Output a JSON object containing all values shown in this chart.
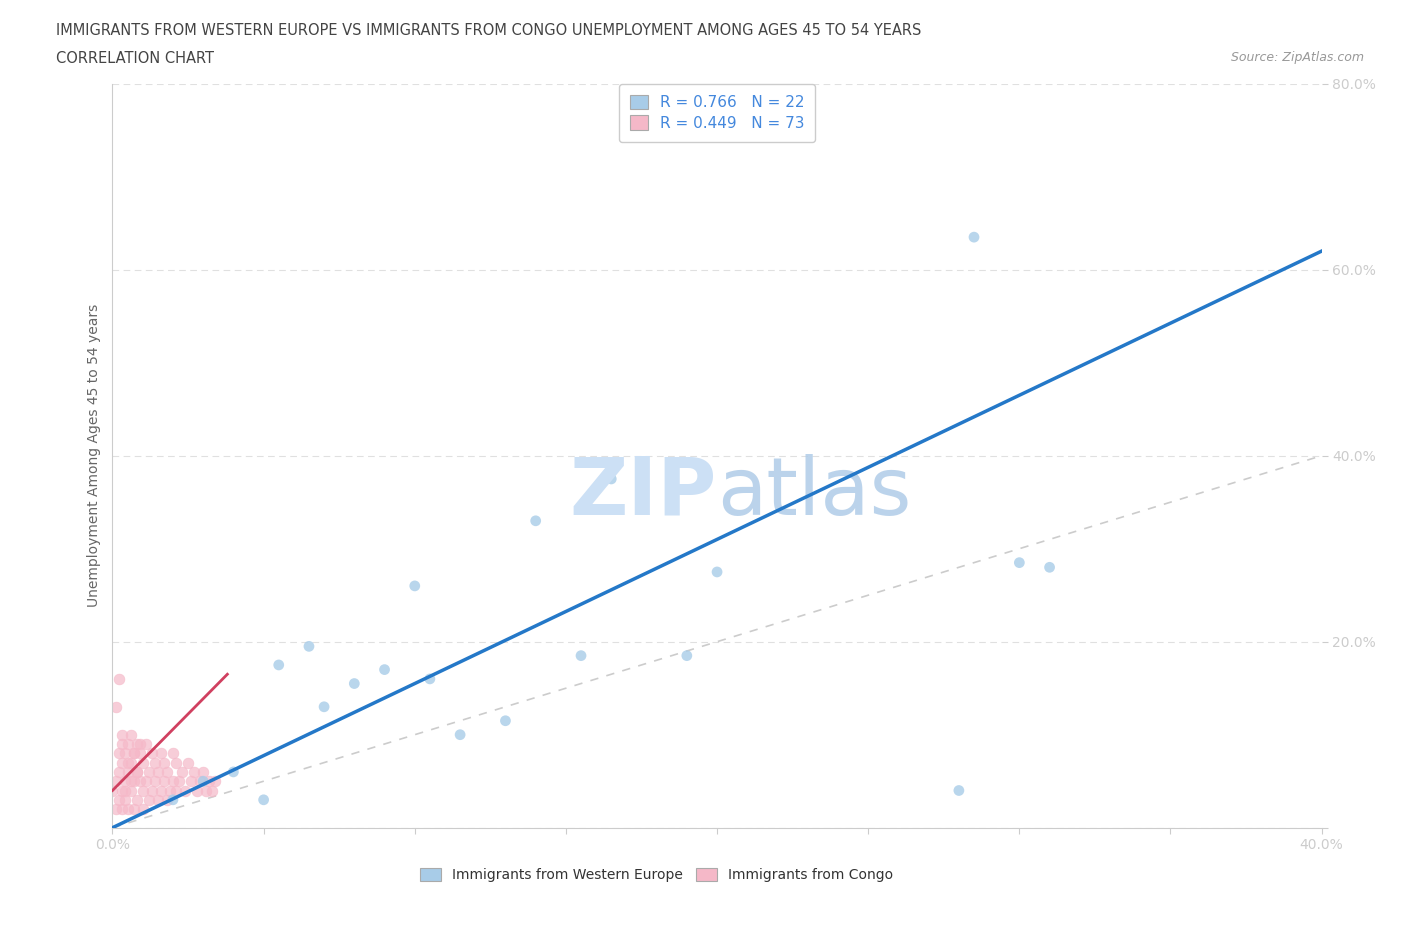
{
  "title_line1": "IMMIGRANTS FROM WESTERN EUROPE VS IMMIGRANTS FROM CONGO UNEMPLOYMENT AMONG AGES 45 TO 54 YEARS",
  "title_line2": "CORRELATION CHART",
  "source_text": "Source: ZipAtlas.com",
  "ylabel": "Unemployment Among Ages 45 to 54 years",
  "xlim": [
    0,
    0.4
  ],
  "ylim": [
    0,
    0.8
  ],
  "legend_r1": "R = 0.766   N = 22",
  "legend_r2": "R = 0.449   N = 73",
  "blue_color": "#a8cce8",
  "pink_color": "#f5b8c8",
  "trend_blue": "#2478c8",
  "trend_pink": "#d04060",
  "diagonal_color": "#cccccc",
  "tick_label_color": "#4488dd",
  "title_color": "#444444",
  "source_color": "#999999",
  "ylabel_color": "#666666",
  "we_x": [
    0.02,
    0.03,
    0.04,
    0.05,
    0.055,
    0.065,
    0.07,
    0.08,
    0.09,
    0.1,
    0.105,
    0.115,
    0.13,
    0.14,
    0.155,
    0.165,
    0.19,
    0.2,
    0.28,
    0.285,
    0.3,
    0.31
  ],
  "we_y": [
    0.03,
    0.05,
    0.06,
    0.03,
    0.175,
    0.195,
    0.13,
    0.155,
    0.17,
    0.26,
    0.16,
    0.1,
    0.115,
    0.33,
    0.185,
    0.375,
    0.185,
    0.275,
    0.04,
    0.635,
    0.285,
    0.28
  ],
  "congo_x": [
    0.0,
    0.001,
    0.001,
    0.002,
    0.002,
    0.002,
    0.003,
    0.003,
    0.003,
    0.003,
    0.004,
    0.004,
    0.004,
    0.005,
    0.005,
    0.005,
    0.006,
    0.006,
    0.006,
    0.007,
    0.007,
    0.007,
    0.008,
    0.008,
    0.008,
    0.009,
    0.009,
    0.01,
    0.01,
    0.01,
    0.011,
    0.011,
    0.012,
    0.012,
    0.013,
    0.013,
    0.014,
    0.014,
    0.015,
    0.015,
    0.016,
    0.016,
    0.017,
    0.017,
    0.018,
    0.018,
    0.019,
    0.02,
    0.02,
    0.021,
    0.021,
    0.022,
    0.023,
    0.024,
    0.025,
    0.026,
    0.027,
    0.028,
    0.029,
    0.03,
    0.031,
    0.032,
    0.033,
    0.034,
    0.001,
    0.002,
    0.003,
    0.004,
    0.005,
    0.006,
    0.007,
    0.008,
    0.009
  ],
  "congo_y": [
    0.04,
    0.02,
    0.05,
    0.03,
    0.06,
    0.08,
    0.04,
    0.07,
    0.09,
    0.02,
    0.05,
    0.08,
    0.03,
    0.06,
    0.09,
    0.02,
    0.04,
    0.07,
    0.1,
    0.05,
    0.08,
    0.02,
    0.06,
    0.09,
    0.03,
    0.05,
    0.08,
    0.04,
    0.07,
    0.02,
    0.05,
    0.09,
    0.03,
    0.06,
    0.04,
    0.08,
    0.05,
    0.07,
    0.03,
    0.06,
    0.04,
    0.08,
    0.05,
    0.07,
    0.03,
    0.06,
    0.04,
    0.05,
    0.08,
    0.04,
    0.07,
    0.05,
    0.06,
    0.04,
    0.07,
    0.05,
    0.06,
    0.04,
    0.05,
    0.06,
    0.04,
    0.05,
    0.04,
    0.05,
    0.13,
    0.16,
    0.1,
    0.04,
    0.07,
    0.05,
    0.08,
    0.06,
    0.09
  ],
  "blue_trend_x": [
    0.0,
    0.4
  ],
  "blue_trend_y": [
    0.0,
    0.62
  ],
  "pink_trend_x": [
    0.0,
    0.038
  ],
  "pink_trend_y": [
    0.04,
    0.165
  ]
}
